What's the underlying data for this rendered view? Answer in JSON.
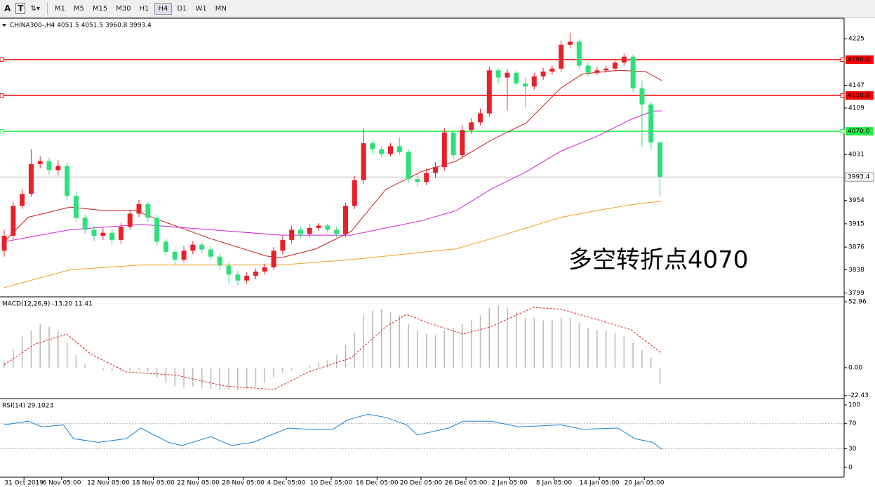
{
  "toolbar": {
    "tools": [
      "A",
      "T"
    ],
    "timeframes": [
      "M1",
      "M5",
      "M15",
      "M30",
      "H1",
      "H4",
      "D1",
      "W1",
      "MN"
    ],
    "active_index": 5
  },
  "chart_data": [
    {
      "type": "candlestick",
      "title": "CHINA300-,H4  4051.5 4051.5 3960.8 3993.4",
      "annotation": "多空转折点4070",
      "up_color": "#e8202a",
      "down_color": "#2ee07a",
      "open": [
        3870,
        3895,
        3945,
        3965,
        4015,
        4020,
        4005,
        4012,
        3962,
        3925,
        3905,
        3895,
        3900,
        3888,
        3910,
        3932,
        3948,
        3925,
        3885,
        3868,
        3855,
        3870,
        3880,
        3872,
        3860,
        3845,
        3830,
        3820,
        3828,
        3835,
        3842,
        3870,
        3888,
        3905,
        3898,
        3908,
        3912,
        3905,
        3898,
        3945,
        3988,
        4050,
        4040,
        4032,
        4045,
        4035,
        3990,
        3985,
        4000,
        4010,
        4068,
        4030,
        4072,
        4085,
        4100,
        4172,
        4160,
        4168,
        4150,
        4145,
        4162,
        4170,
        4175,
        4215,
        4220,
        4180,
        4168,
        4172,
        4175,
        4185,
        4195,
        4142,
        4115,
        4051.5
      ],
      "high": [
        3905,
        3952,
        3972,
        4040,
        4028,
        4026,
        4022,
        4018,
        3968,
        3930,
        3912,
        3908,
        3906,
        3916,
        3938,
        3955,
        3952,
        3930,
        3890,
        3872,
        3878,
        3886,
        3884,
        3878,
        3866,
        3850,
        3836,
        3834,
        3840,
        3848,
        3876,
        3894,
        3912,
        3910,
        3914,
        3916,
        3915,
        3910,
        3950,
        3995,
        4075,
        4055,
        4046,
        4050,
        4060,
        4040,
        3998,
        4008,
        4018,
        4075,
        4072,
        4080,
        4092,
        4108,
        4178,
        4176,
        4174,
        4172,
        4160,
        4168,
        4176,
        4180,
        4222,
        4235,
        4224,
        4185,
        4178,
        4180,
        4190,
        4200,
        4198,
        4155,
        4120,
        4051.5
      ],
      "low": [
        3860,
        3890,
        3940,
        3960,
        4008,
        3998,
        3996,
        3955,
        3918,
        3898,
        3886,
        3888,
        3880,
        3882,
        3905,
        3926,
        3918,
        3878,
        3860,
        3846,
        3850,
        3864,
        3866,
        3854,
        3838,
        3815,
        3812,
        3814,
        3822,
        3830,
        3838,
        3864,
        3882,
        3892,
        3893,
        3903,
        3900,
        3892,
        3893,
        3940,
        3982,
        4032,
        4026,
        4028,
        4030,
        3984,
        3978,
        3980,
        3992,
        4004,
        4024,
        4025,
        4066,
        4080,
        4095,
        4150,
        4105,
        4145,
        4110,
        4140,
        4156,
        4165,
        4170,
        4210,
        4174,
        4162,
        4164,
        4168,
        4170,
        4180,
        4136,
        4045,
        4040,
        3960.8
      ],
      "close": [
        3895,
        3945,
        3965,
        4015,
        4020,
        4005,
        4012,
        3962,
        3925,
        3905,
        3895,
        3900,
        3888,
        3910,
        3932,
        3948,
        3925,
        3885,
        3868,
        3855,
        3870,
        3880,
        3872,
        3860,
        3845,
        3830,
        3820,
        3828,
        3835,
        3842,
        3870,
        3888,
        3905,
        3898,
        3908,
        3912,
        3905,
        3898,
        3945,
        3988,
        4050,
        4040,
        4032,
        4045,
        4035,
        3990,
        3985,
        4000,
        4010,
        4068,
        4030,
        4072,
        4085,
        4100,
        4172,
        4160,
        4168,
        4150,
        4145,
        4162,
        4170,
        4175,
        4215,
        4220,
        4180,
        4168,
        4172,
        4175,
        4185,
        4195,
        4142,
        4115,
        4051.5,
        3993.4
      ],
      "lines": [
        {
          "color": "#d01818",
          "x": [
            0,
            2.66,
            7.34,
            11.25,
            14.4,
            17.5,
            23,
            29.2,
            30.8,
            34.7,
            38.6,
            42.5,
            46.4,
            50.3,
            54.2,
            58.1,
            62,
            64.4,
            68.3,
            71.4,
            73.2
          ],
          "values": [
            3885,
            3926,
            3943,
            3937,
            3938,
            3920,
            3890,
            3861,
            3858,
            3873,
            3902,
            3973,
            4002,
            4020,
            4055,
            4084,
            4143,
            4166,
            4172,
            4170,
            4155
          ]
        },
        {
          "color": "#d020d0",
          "x": [
            0,
            7.34,
            15.2,
            23,
            30.8,
            38.6,
            42.5,
            46.4,
            50.3,
            54.2,
            58.1,
            62,
            65.9,
            69.8,
            72.2,
            73.2
          ],
          "values": [
            3885,
            3905,
            3914,
            3905,
            3896,
            3896,
            3908,
            3920,
            3937,
            3973,
            4002,
            4037,
            4061,
            4090,
            4104,
            4104
          ]
        },
        {
          "color": "#f0a020",
          "x": [
            0,
            7.34,
            15.2,
            23,
            30.8,
            38.6,
            46.4,
            50.3,
            54.2,
            58.1,
            62,
            65.9,
            69.8,
            73.2
          ],
          "values": [
            3808,
            3838,
            3846,
            3846,
            3846,
            3855,
            3867,
            3873,
            3890,
            3908,
            3926,
            3937,
            3947,
            3953
          ]
        }
      ],
      "levels": [
        {
          "value": 4190,
          "label": "4190.0",
          "color": "#ff0000"
        },
        {
          "value": 4130,
          "label": "4130.0",
          "color": "#ff0000"
        },
        {
          "value": 4070,
          "label": "4070.0",
          "color": "#22ee44"
        }
      ],
      "last_price": 3993.4,
      "xlim": [
        -0.47,
        93.5
      ],
      "ylim": [
        3795,
        4257
      ],
      "yticks": [
        4225,
        4147,
        4109,
        4031,
        3954,
        3915,
        3876,
        3838,
        3799
      ]
    },
    {
      "type": "macd",
      "title": "MACD(12,26,9) -13.20 11.41",
      "histogram_color": "#b8b8b8",
      "histogram": [
        5,
        15,
        25,
        30,
        35,
        33,
        30,
        20,
        10,
        3,
        0,
        -2,
        -3,
        -3,
        -2,
        -2,
        -3,
        -8,
        -12,
        -15,
        -16,
        -15,
        -16,
        -17,
        -18,
        -18,
        -18,
        -17,
        -15,
        -12,
        -8,
        -4,
        -2,
        0,
        2,
        4,
        6,
        10,
        18,
        28,
        42,
        46,
        47,
        45,
        42,
        35,
        30,
        27,
        26,
        30,
        32,
        35,
        38,
        42,
        48,
        50,
        48,
        45,
        40,
        40,
        38,
        38,
        40,
        40,
        36,
        32,
        30,
        30,
        28,
        25,
        20,
        14,
        8,
        -13.2
      ],
      "signal": {
        "color": "#e02020",
        "x": [
          0,
          3.44,
          6.95,
          9.69,
          13.6,
          19.1,
          24.5,
          30,
          33.9,
          38.6,
          42.5,
          44.8,
          47.2,
          51.1,
          54.2,
          58.9,
          62,
          65.9,
          69.8,
          73.2
        ],
        "values": [
          2.3,
          19,
          27,
          10.7,
          -3.4,
          -6,
          -14.6,
          -17.5,
          -3.4,
          7.9,
          33,
          42.8,
          36,
          27,
          33,
          48.4,
          47,
          38.9,
          30.4,
          11.41
        ]
      },
      "xlim": [
        -0.47,
        93.5
      ],
      "ylim": [
        -23.7,
        55.8
      ],
      "yticks": [
        52.96,
        {
          "value": 0,
          "label": "0.00"
        },
        -22.43
      ]
    },
    {
      "type": "line",
      "title": "RSI(14) 29.1023",
      "series": [
        {
          "color": "#1e7fd8",
          "x": [
            0,
            2.66,
            4.2,
            6.6,
            7.7,
            10.5,
            13.6,
            15.2,
            18.3,
            19.8,
            23,
            25.3,
            27.7,
            31.6,
            33.9,
            36.6,
            38.2,
            40.5,
            42.5,
            44.8,
            46,
            49.5,
            51.1,
            54.2,
            57.3,
            62,
            64.4,
            68.3,
            70.2,
            72.2,
            73.2
          ],
          "values": [
            68,
            74,
            65,
            68,
            46,
            40,
            46,
            63,
            40,
            35,
            49,
            35,
            40,
            63,
            61,
            61,
            76,
            85,
            80,
            68,
            52,
            63,
            74,
            74,
            65,
            68,
            61,
            63,
            46,
            40,
            29.1
          ]
        }
      ],
      "level_lines": [
        70,
        30
      ],
      "xlim": [
        -0.47,
        93.5
      ],
      "ylim": [
        -15.7,
        107.9
      ],
      "yticks": [
        100,
        70,
        30,
        0
      ],
      "xticks": [
        {
          "value": 2.2,
          "label": "31 Oct 2019"
        },
        {
          "value": 6.4,
          "label": "6 Nov 05:00"
        },
        {
          "value": 11.6,
          "label": "12 Nov 05:00"
        },
        {
          "value": 16.6,
          "label": "18 Nov 05:00"
        },
        {
          "value": 21.6,
          "label": "22 Nov 05:00"
        },
        {
          "value": 26.6,
          "label": "28 Nov 05:00"
        },
        {
          "value": 31.4,
          "label": "4 Dec 05:00"
        },
        {
          "value": 36.4,
          "label": "10 Dec 05:00"
        },
        {
          "value": 41.5,
          "label": "16 Dec 05:00"
        },
        {
          "value": 46.4,
          "label": "20 Dec 05:00"
        },
        {
          "value": 51.4,
          "label": "26 Dec 05:00"
        },
        {
          "value": 56.25,
          "label": "2 Jan 05:00"
        },
        {
          "value": 61.2,
          "label": "8 Jan 05:00"
        },
        {
          "value": 66.25,
          "label": "14 Jan 05:00"
        },
        {
          "value": 71.25,
          "label": "20 Jan 05:00"
        }
      ]
    }
  ]
}
